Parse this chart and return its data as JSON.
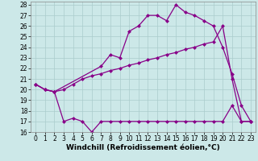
{
  "xlabel": "Windchill (Refroidissement éolien,°C)",
  "background_color": "#cce8e8",
  "line_color": "#880088",
  "grid_color": "#aacccc",
  "xlim": [
    -0.5,
    23.5
  ],
  "ylim": [
    16,
    28.3
  ],
  "xticks": [
    0,
    1,
    2,
    3,
    4,
    5,
    6,
    7,
    8,
    9,
    10,
    11,
    12,
    13,
    14,
    15,
    16,
    17,
    18,
    19,
    20,
    21,
    22,
    23
  ],
  "yticks": [
    16,
    17,
    18,
    19,
    20,
    21,
    22,
    23,
    24,
    25,
    26,
    27,
    28
  ],
  "line1_x": [
    0,
    1,
    2,
    3,
    4,
    5,
    6,
    7,
    8,
    9,
    10,
    11,
    12,
    13,
    14,
    15,
    16,
    17,
    18,
    19,
    20,
    21,
    22,
    23
  ],
  "line1_y": [
    20.5,
    20.0,
    19.8,
    17.0,
    17.3,
    17.0,
    16.0,
    17.0,
    17.0,
    17.0,
    17.0,
    17.0,
    17.0,
    17.0,
    17.0,
    17.0,
    17.0,
    17.0,
    17.0,
    17.0,
    17.0,
    18.5,
    17.0,
    17.0
  ],
  "line2_x": [
    0,
    1,
    2,
    3,
    4,
    5,
    6,
    7,
    8,
    9,
    10,
    11,
    12,
    13,
    14,
    15,
    16,
    17,
    18,
    19,
    20,
    21,
    22,
    23
  ],
  "line2_y": [
    20.5,
    20.0,
    19.8,
    20.0,
    20.5,
    21.0,
    21.3,
    21.5,
    21.8,
    22.0,
    22.3,
    22.5,
    22.8,
    23.0,
    23.3,
    23.5,
    23.8,
    24.0,
    24.3,
    24.5,
    26.0,
    21.0,
    17.0,
    17.0
  ],
  "line3_x": [
    0,
    1,
    2,
    7,
    8,
    9,
    10,
    11,
    12,
    13,
    14,
    15,
    16,
    17,
    18,
    19,
    20,
    21,
    22,
    23
  ],
  "line3_y": [
    20.5,
    20.0,
    19.8,
    22.2,
    23.3,
    23.0,
    25.5,
    26.0,
    27.0,
    27.0,
    26.5,
    28.0,
    27.3,
    27.0,
    26.5,
    26.0,
    24.0,
    21.5,
    18.5,
    17.0
  ],
  "markersize": 2.5,
  "linewidth": 0.9,
  "xlabel_fontsize": 6.5,
  "tick_fontsize": 5.5
}
